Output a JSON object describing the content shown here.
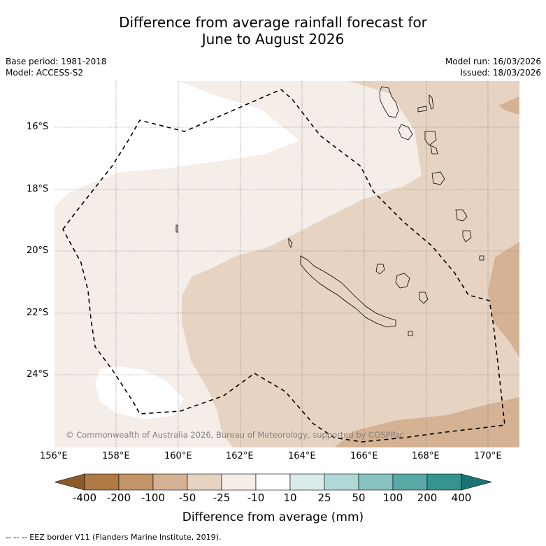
{
  "title": {
    "line1": "Difference from average rainfall forecast for",
    "line2": "June to August 2026"
  },
  "meta_left": {
    "base_period": "Base period: 1981-2018",
    "model": "Model: ACCESS-S2"
  },
  "meta_right": {
    "model_run": "Model run: 16/03/2026",
    "issued": "Issued: 18/03/2026"
  },
  "map": {
    "lat_labels": [
      "16°S",
      "18°S",
      "20°S",
      "22°S",
      "24°S"
    ],
    "lon_labels": [
      "156°E",
      "158°E",
      "160°E",
      "162°E",
      "164°E",
      "166°E",
      "168°E",
      "170°E"
    ],
    "copyright": "© Commonwealth of Australia 2026, Bureau of Meteorology, supported by COSPPac"
  },
  "colorbar": {
    "labels": [
      "-400",
      "-200",
      "-100",
      "-50",
      "-25",
      "-10",
      "10",
      "25",
      "50",
      "100",
      "200",
      "400"
    ],
    "colors": [
      "#8b5a2b",
      "#b07a45",
      "#c39468",
      "#d4b293",
      "#e6d3c2",
      "#f5ede8",
      "#ffffff",
      "#d9ebea",
      "#b0d8d6",
      "#86c2bf",
      "#59aaa7",
      "#35948f",
      "#1b7472"
    ],
    "title": "Difference from average (mm)"
  },
  "footer": "--  --  -- EEZ border V11 (Flanders Marine Institute, 2019)."
}
